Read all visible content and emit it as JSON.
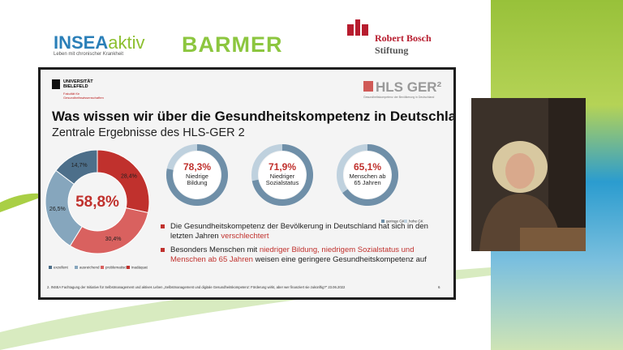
{
  "logos": {
    "insea": "INSEA",
    "insea_aktiv": "aktiv",
    "insea_tagline": "Leben mit chronischer Krankheit",
    "barmer": "BARMER",
    "bosch_line1": "Robert Bosch",
    "bosch_line2": "Stiftung"
  },
  "slide": {
    "university": "UNIVERSITÄT BIELEFELD",
    "faculty": "Fakultät für Gesundheitswissenschaften",
    "hls_logo": "HLS GER²",
    "hls_subtitle": "Gesundheitskompetenz der Bevölkerung in Deutschland",
    "title": "Was wissen wir über die Gesundheitskompetenz in Deutschland?",
    "subtitle": "Zentrale Ergebnisse des HLS-GER 2",
    "bullets": [
      [
        {
          "text": "Die Gesundheitskompetenz der Bevölkerung in Deutschland hat sich in den letzten Jahren ",
          "highlight": false
        },
        {
          "text": "verschlechtert",
          "highlight": true
        }
      ],
      [
        {
          "text": "Besonders Menschen mit ",
          "highlight": false
        },
        {
          "text": "niedriger Bildung, niedrigem Sozialstatus und Menschen ab 65 Jahren",
          "highlight": true
        },
        {
          "text": " weisen eine geringere Gesundheitskompetenz auf",
          "highlight": false
        }
      ]
    ],
    "footer": "2. INSEA Fachtagung der Initiative für Selbstmanagement und aktives Leben „Selbstmanagement und digitale Gesundheitskompetenz: Förderung wirkt, aber wer finanziert sie zukünftig?“ 23.06.2022",
    "page_number": "6"
  },
  "chart_data": [
    {
      "type": "donut",
      "categories": [
        "exzellent",
        "ausreichend",
        "problematisch",
        "inadäquat"
      ],
      "values": [
        14.7,
        26.5,
        30.4,
        28.4
      ],
      "value_labels": [
        "14,7%",
        "26,5%",
        "30,4%",
        "28,4%"
      ],
      "colors": [
        "#4d6f8a",
        "#86a6bd",
        "#d9615f",
        "#c0312d"
      ],
      "center_label": "58,8%"
    },
    {
      "type": "ring",
      "categories": [
        "Niedrige Bildung",
        "Niedriger Sozialstatus",
        "Menschen ab 65 Jahren"
      ],
      "values": [
        78.3,
        71.9,
        65.1
      ],
      "value_labels": [
        "78,3%",
        "71,9%",
        "65,1%"
      ],
      "series_names": [
        "geringe GK",
        "hohe GK"
      ],
      "colors": [
        "#6f8fa8",
        "#bfd1de"
      ]
    }
  ]
}
